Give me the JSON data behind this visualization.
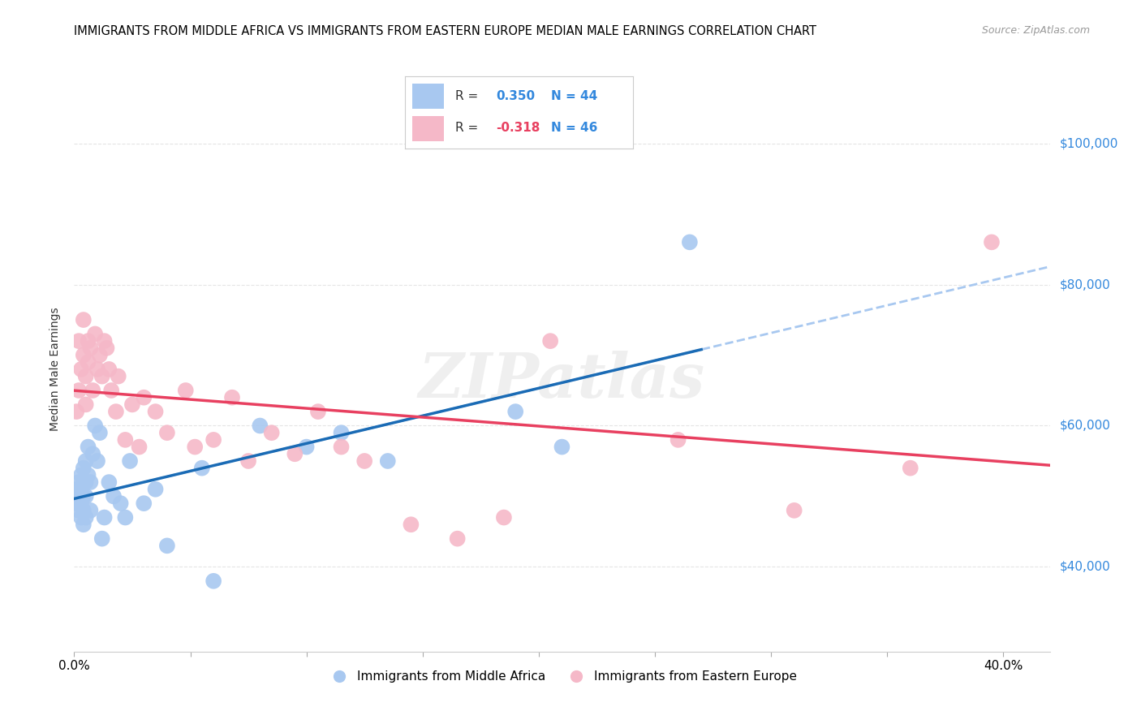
{
  "title": "IMMIGRANTS FROM MIDDLE AFRICA VS IMMIGRANTS FROM EASTERN EUROPE MEDIAN MALE EARNINGS CORRELATION CHART",
  "source": "Source: ZipAtlas.com",
  "ylabel": "Median Male Earnings",
  "r_blue": 0.35,
  "n_blue": 44,
  "r_pink": -0.318,
  "n_pink": 46,
  "yticks": [
    40000,
    60000,
    80000,
    100000
  ],
  "ytick_labels": [
    "$40,000",
    "$60,000",
    "$80,000",
    "$100,000"
  ],
  "xlim": [
    0.0,
    0.42
  ],
  "ylim": [
    28000,
    108000
  ],
  "watermark": "ZIPatlas",
  "blue_x": [
    0.001,
    0.001,
    0.002,
    0.002,
    0.002,
    0.003,
    0.003,
    0.003,
    0.003,
    0.004,
    0.004,
    0.004,
    0.004,
    0.005,
    0.005,
    0.005,
    0.005,
    0.006,
    0.006,
    0.007,
    0.007,
    0.008,
    0.009,
    0.01,
    0.011,
    0.012,
    0.013,
    0.015,
    0.017,
    0.02,
    0.022,
    0.024,
    0.03,
    0.035,
    0.04,
    0.055,
    0.06,
    0.08,
    0.1,
    0.115,
    0.135,
    0.19,
    0.21,
    0.265
  ],
  "blue_y": [
    49000,
    51000,
    48000,
    50000,
    52000,
    47000,
    49000,
    51000,
    53000,
    46000,
    48000,
    50000,
    54000,
    47000,
    50000,
    52000,
    55000,
    53000,
    57000,
    52000,
    48000,
    56000,
    60000,
    55000,
    59000,
    44000,
    47000,
    52000,
    50000,
    49000,
    47000,
    55000,
    49000,
    51000,
    43000,
    54000,
    38000,
    60000,
    57000,
    59000,
    55000,
    62000,
    57000,
    86000
  ],
  "pink_x": [
    0.001,
    0.002,
    0.002,
    0.003,
    0.004,
    0.004,
    0.005,
    0.005,
    0.006,
    0.006,
    0.007,
    0.008,
    0.009,
    0.01,
    0.011,
    0.012,
    0.013,
    0.014,
    0.015,
    0.016,
    0.018,
    0.019,
    0.022,
    0.025,
    0.028,
    0.03,
    0.035,
    0.04,
    0.048,
    0.052,
    0.06,
    0.068,
    0.075,
    0.085,
    0.095,
    0.105,
    0.115,
    0.125,
    0.145,
    0.165,
    0.185,
    0.205,
    0.26,
    0.31,
    0.36,
    0.395
  ],
  "pink_y": [
    62000,
    72000,
    65000,
    68000,
    75000,
    70000,
    63000,
    67000,
    69000,
    72000,
    71000,
    65000,
    73000,
    68000,
    70000,
    67000,
    72000,
    71000,
    68000,
    65000,
    62000,
    67000,
    58000,
    63000,
    57000,
    64000,
    62000,
    59000,
    65000,
    57000,
    58000,
    64000,
    55000,
    59000,
    56000,
    62000,
    57000,
    55000,
    46000,
    44000,
    47000,
    72000,
    58000,
    48000,
    54000,
    86000
  ],
  "blue_dot_color": "#A8C8F0",
  "pink_dot_color": "#F5B8C8",
  "blue_line_color": "#1A6BB5",
  "pink_line_color": "#E84060",
  "dashed_line_color": "#A8C8F0",
  "right_axis_color": "#3388DD",
  "grid_color": "#E5E5E5",
  "bg_color": "#FFFFFF"
}
